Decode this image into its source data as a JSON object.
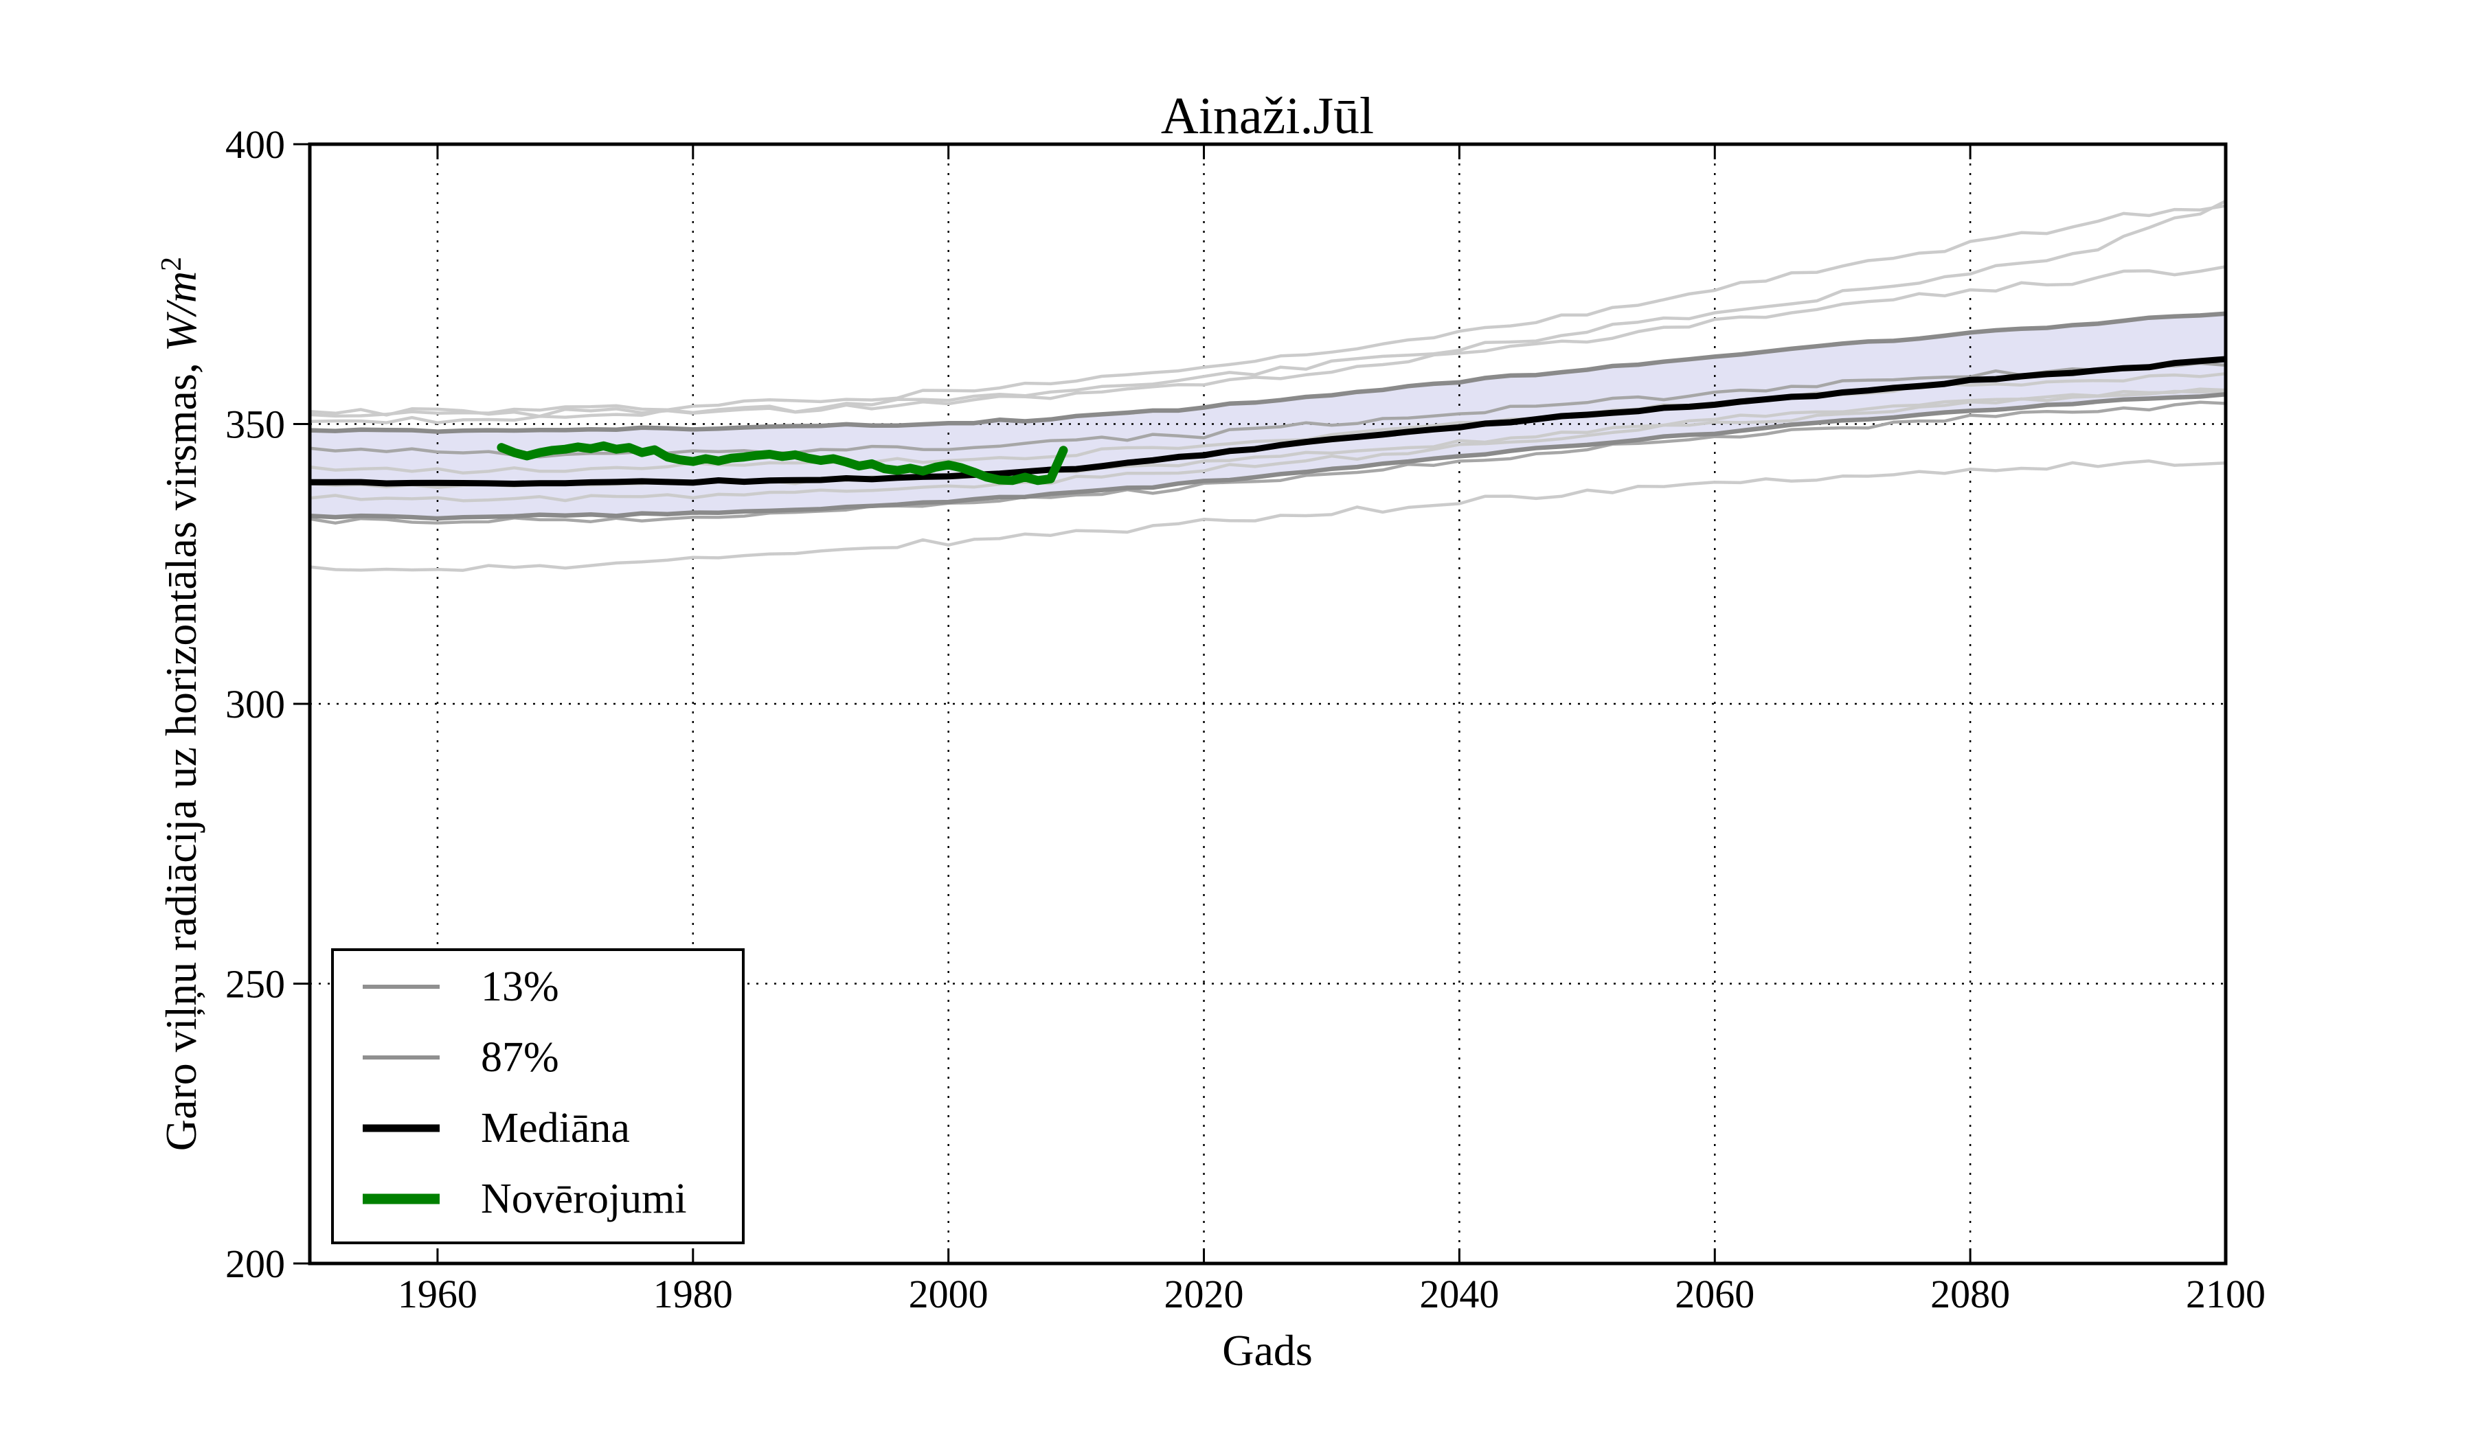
{
  "title": "Ainaži.Jūl",
  "xlabel": "Gads",
  "ylabel": {
    "text": "Garo viļņu radiācija uz horizontālas virsmas, ",
    "math": "W/m",
    "sup": "2"
  },
  "legend": {
    "items": [
      {
        "label": "13%",
        "color": "#909090"
      },
      {
        "label": "87%",
        "color": "#909090"
      },
      {
        "label": "Mediāna",
        "color": "#000000"
      },
      {
        "label": "Novērojumi",
        "color": "#008000"
      }
    ]
  },
  "colors": {
    "band_fill": "#e2e2f4",
    "band_edge": "#8a8a8a",
    "median": "#000000",
    "observations": "#008000",
    "ensemble_light": "#cbcbcb",
    "ensemble_medium": "#a6a6a6",
    "grid": "#000000"
  },
  "chart_data": {
    "type": "line",
    "title": "Ainaži.Jūl",
    "xlabel": "Gads",
    "ylabel": "Garo viļņu radiācija uz horizontālas virsmas, W/m2",
    "x_range": [
      1950,
      2100
    ],
    "y_range": [
      200,
      400
    ],
    "x_ticks": [
      1960,
      1980,
      2000,
      2020,
      2040,
      2060,
      2080,
      2100
    ],
    "y_ticks": [
      200,
      250,
      300,
      350,
      400
    ],
    "grid_x": [
      1960,
      1980,
      2000,
      2020,
      2040,
      2060,
      2080
    ],
    "grid_y": [
      250,
      300,
      350
    ],
    "anchor_years": [
      1950,
      1960,
      1970,
      1980,
      1990,
      2000,
      2010,
      2020,
      2030,
      2040,
      2050,
      2060,
      2070,
      2080,
      2090,
      2100
    ],
    "median": {
      "name": "Mediāna",
      "wiggle": 0.25,
      "seed": 11,
      "width": 9,
      "values": [
        339.6,
        339.4,
        339.5,
        339.7,
        340.0,
        340.7,
        342.0,
        344.6,
        347.2,
        349.6,
        351.6,
        353.5,
        355.6,
        357.7,
        359.6,
        361.5
      ]
    },
    "band": {
      "upper_name": "87%",
      "lower_name": "13%",
      "wiggle": 0.35,
      "width": 6.5,
      "upper_seed": 21,
      "lower_seed": 22,
      "upper": [
        348.9,
        348.8,
        349.0,
        349.2,
        349.6,
        350.1,
        351.3,
        353.0,
        355.3,
        357.6,
        359.8,
        362.0,
        364.2,
        366.3,
        368.1,
        369.8
      ],
      "lower": [
        333.6,
        333.4,
        333.7,
        334.2,
        335.0,
        336.2,
        337.8,
        339.7,
        342.0,
        344.2,
        346.4,
        348.5,
        350.5,
        352.3,
        353.9,
        355.3
      ]
    },
    "ensembles": [
      {
        "seed": 31,
        "wiggle": 0.8,
        "shade": "light",
        "values": [
          351.5,
          351.9,
          352.5,
          353.2,
          354.2,
          355.6,
          357.5,
          360.0,
          363.0,
          366.3,
          370.0,
          374.0,
          378.2,
          382.4,
          386.4,
          389.0
        ]
      },
      {
        "seed": 32,
        "wiggle": 0.8,
        "shade": "light",
        "values": [
          350.4,
          350.7,
          351.3,
          352.1,
          353.1,
          354.4,
          356.1,
          358.3,
          360.9,
          363.7,
          366.7,
          369.8,
          373.2,
          376.8,
          381.5,
          390.0
        ]
      },
      {
        "seed": 33,
        "wiggle": 0.7,
        "shade": "medium",
        "values": [
          345.6,
          344.9,
          344.5,
          344.8,
          345.2,
          345.8,
          346.8,
          348.2,
          350.0,
          351.9,
          353.8,
          355.6,
          357.3,
          358.8,
          359.9,
          360.7
        ]
      },
      {
        "seed": 34,
        "wiggle": 0.7,
        "shade": "light",
        "values": [
          342.2,
          341.8,
          342.0,
          342.4,
          342.9,
          343.6,
          344.7,
          346.2,
          348.0,
          349.9,
          351.8,
          353.7,
          355.4,
          356.9,
          358.1,
          359.0
        ]
      },
      {
        "seed": 35,
        "wiggle": 0.7,
        "shade": "light",
        "values": [
          336.9,
          336.5,
          336.8,
          337.3,
          338.0,
          338.9,
          340.2,
          341.8,
          343.7,
          345.8,
          347.9,
          350.0,
          351.9,
          353.6,
          355.0,
          356.0
        ]
      },
      {
        "seed": 36,
        "wiggle": 0.7,
        "shade": "medium",
        "values": [
          332.8,
          332.4,
          332.8,
          333.5,
          334.4,
          335.6,
          337.1,
          338.9,
          341.0,
          343.2,
          345.4,
          347.5,
          349.5,
          351.2,
          352.6,
          353.7
        ]
      },
      {
        "seed": 37,
        "wiggle": 0.8,
        "shade": "light",
        "values": [
          324.3,
          323.7,
          324.6,
          325.9,
          327.3,
          328.9,
          330.6,
          332.4,
          334.3,
          336.1,
          337.9,
          339.5,
          340.9,
          341.9,
          342.6,
          343.0
        ]
      },
      {
        "seed": 38,
        "wiggle": 0.6,
        "shade": "light",
        "values": [
          339.2,
          338.9,
          339.1,
          339.5,
          340.0,
          340.7,
          341.8,
          343.2,
          344.9,
          346.8,
          348.8,
          350.7,
          352.5,
          354.0,
          355.2,
          356.1
        ]
      },
      {
        "seed": 39,
        "wiggle": 0.8,
        "shade": "light",
        "values": [
          352.3,
          352.1,
          352.0,
          352.3,
          352.9,
          353.8,
          355.3,
          357.3,
          359.7,
          362.4,
          365.3,
          368.2,
          371.1,
          373.8,
          376.2,
          378.1
        ]
      }
    ],
    "observations": {
      "name": "Novērojumi",
      "start_year": 1965,
      "width": 13,
      "values": [
        345.8,
        344.9,
        344.3,
        344.9,
        345.3,
        345.5,
        345.9,
        345.6,
        346.1,
        345.5,
        345.8,
        344.9,
        345.4,
        344.1,
        343.6,
        343.3,
        343.8,
        343.4,
        343.9,
        344.1,
        344.4,
        344.6,
        344.2,
        344.5,
        343.9,
        343.5,
        343.8,
        343.2,
        342.5,
        342.9,
        342.0,
        341.7,
        342.1,
        341.6,
        342.3,
        342.7,
        342.2,
        341.4,
        340.5,
        340.0,
        339.9,
        340.5,
        339.9,
        340.2,
        345.3
      ]
    },
    "legend_position": "lower-left",
    "grid": "dotted"
  }
}
